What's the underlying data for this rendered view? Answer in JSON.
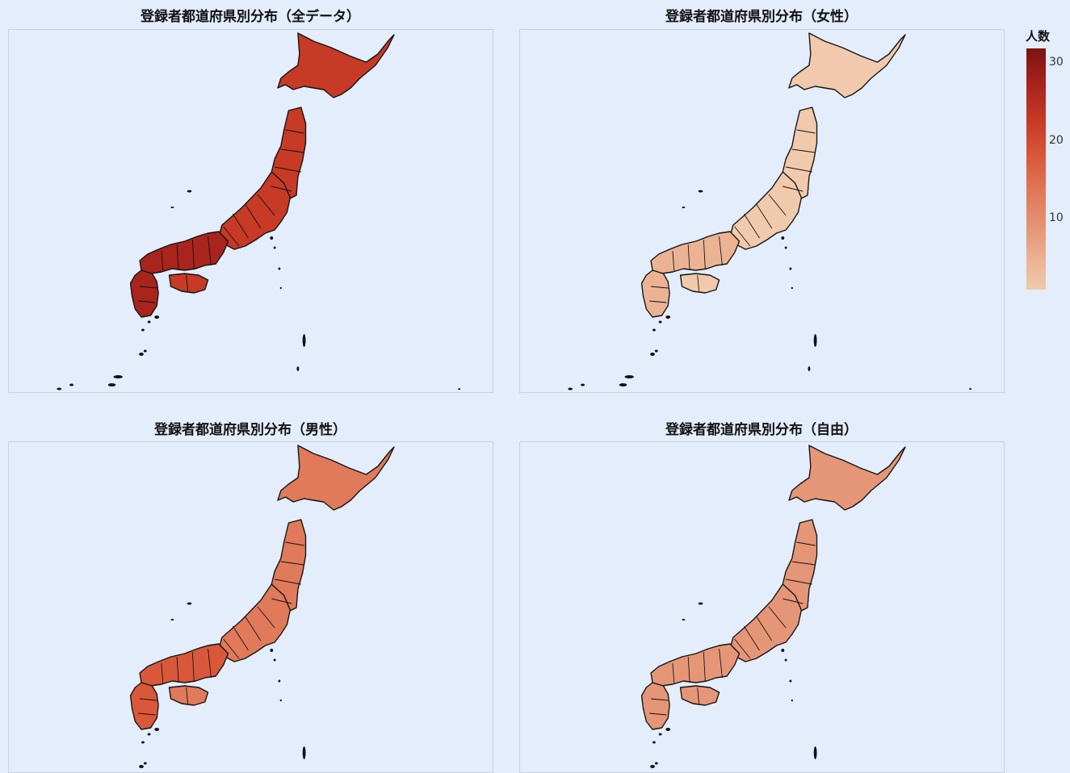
{
  "panels": [
    {
      "title": "登録者都道府県別分布（全データ）",
      "level": 0.7
    },
    {
      "title": "登録者都道府県別分布（女性）",
      "level": 0.05
    },
    {
      "title": "登録者都道府県別分布（男性）",
      "level": 0.45
    },
    {
      "title": "登録者都道府県別分布（自由）",
      "level": 0.22
    }
  ],
  "colorbar": {
    "title": "人数",
    "ticks": [
      "30",
      "20",
      "10"
    ],
    "scale_colors": [
      "#7a1410",
      "#a8241c",
      "#c63a26",
      "#d9583a",
      "#e07a5a",
      "#e59677",
      "#ebb394",
      "#f1c9ad"
    ]
  }
}
